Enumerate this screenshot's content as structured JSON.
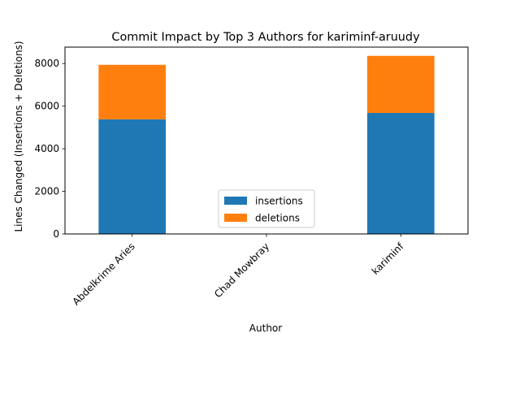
{
  "chart_data": {
    "type": "bar",
    "stacked": true,
    "title": "Commit Impact by Top 3 Authors for kariminf-aruudy",
    "xlabel": "Author",
    "ylabel": "Lines Changed (Insertions + Deletions)",
    "categories": [
      "Abdelkrime Aries",
      "Chad Mowbray",
      "kariminf"
    ],
    "series": [
      {
        "name": "insertions",
        "color": "#1f77b4",
        "values": [
          5380,
          0,
          5680
        ]
      },
      {
        "name": "deletions",
        "color": "#ff7f0e",
        "values": [
          2560,
          0,
          2680
        ]
      }
    ],
    "ylim": [
      0,
      8770
    ],
    "yticks": [
      0,
      2000,
      4000,
      6000,
      8000
    ],
    "ytick_labels": [
      "0",
      "2000",
      "4000",
      "6000",
      "8000"
    ],
    "grid": false,
    "legend": "lower center"
  }
}
